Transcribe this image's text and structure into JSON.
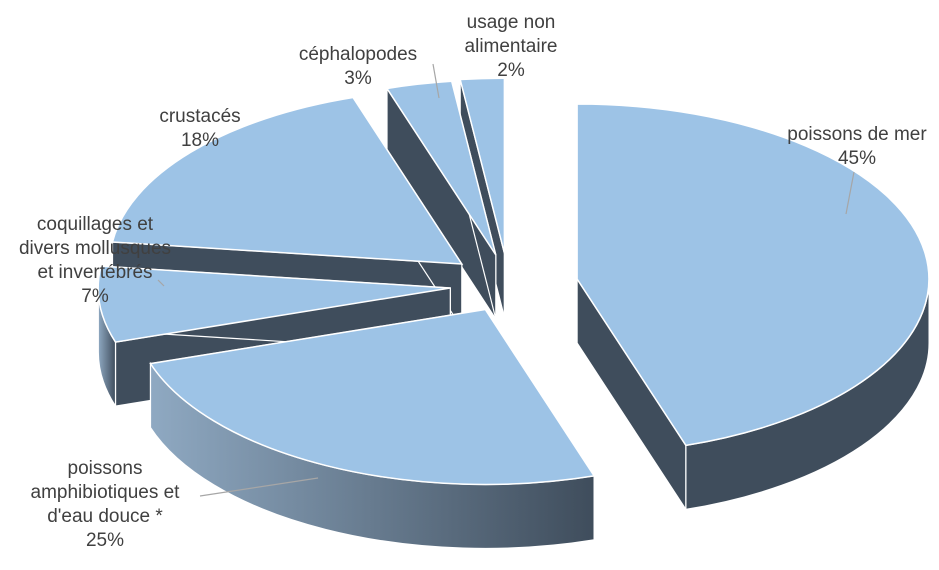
{
  "chart_data": {
    "type": "pie",
    "style": "3d-exploded",
    "title": "",
    "slices": [
      {
        "label_lines": [
          "poissons de mer"
        ],
        "pct_label": "45%",
        "value": 45
      },
      {
        "label_lines": [
          "poissons",
          "amphibiotiques et",
          "d'eau douce *"
        ],
        "pct_label": "25%",
        "value": 25
      },
      {
        "label_lines": [
          "coquillages et",
          "divers mollusques",
          "et invertébrés"
        ],
        "pct_label": "7%",
        "value": 7
      },
      {
        "label_lines": [
          "crustacés"
        ],
        "pct_label": "18%",
        "value": 18
      },
      {
        "label_lines": [
          "céphalopodes"
        ],
        "pct_label": "3%",
        "value": 3
      },
      {
        "label_lines": [
          "usage non",
          "alimentaire"
        ],
        "pct_label": "2%",
        "value": 2
      }
    ],
    "colors": {
      "top": "#9dc3e6",
      "side": "#3f4d5c",
      "side_light": "#8ca5be",
      "edge": "#ffffff",
      "label": "#404040",
      "leader": "#a6a6a6"
    }
  }
}
